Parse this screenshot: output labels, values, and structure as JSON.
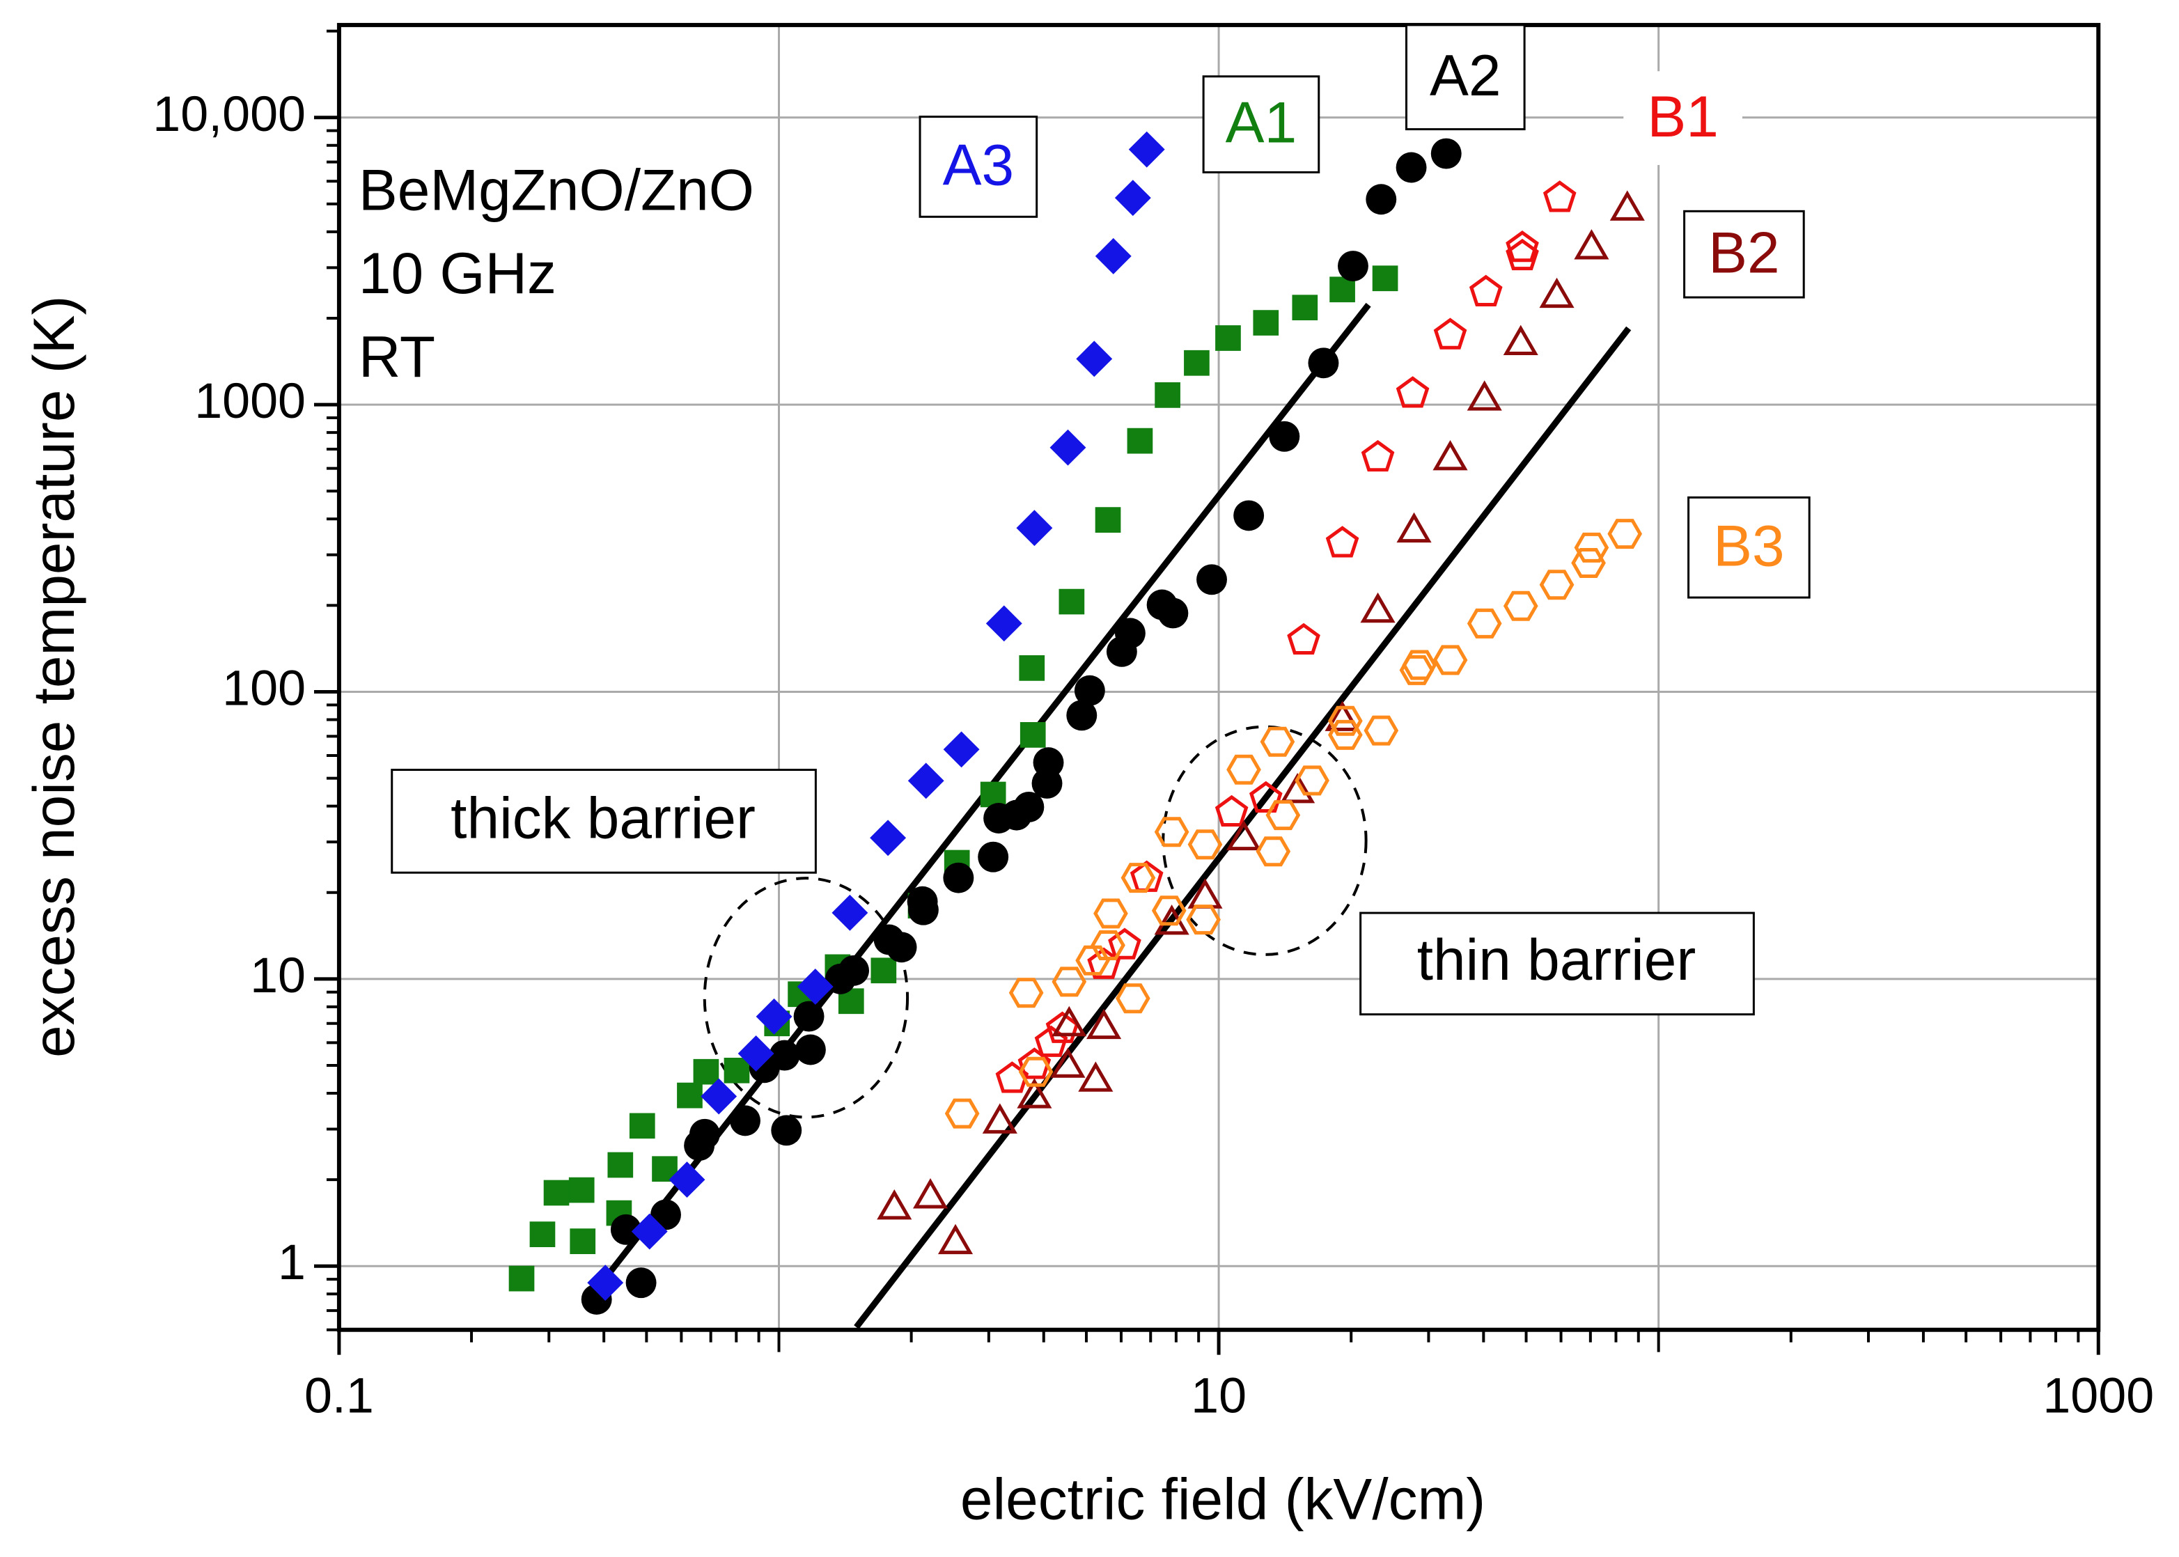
{
  "chart_data": {
    "type": "scatter",
    "xlabel": "electric field (kV/cm)",
    "ylabel": "excess noise temperature (K)",
    "xscale": "log",
    "yscale": "log",
    "grid": true,
    "xlim": [
      0.1,
      1000
    ],
    "ylim": [
      0.6,
      21000
    ],
    "xticks": [
      0.1,
      10,
      1000
    ],
    "yticks": [
      1,
      10,
      100,
      1000,
      {
        "value": 10000,
        "label": "10,000"
      }
    ],
    "annotations": [
      "BeMgZnO/ZnO",
      "10 GHz",
      "RT",
      "thick barrier",
      "thin barrier"
    ],
    "series": [
      {
        "name": "A1",
        "color": "#118011",
        "marker": "square",
        "filled": true,
        "x": [
          0.26,
          0.29,
          0.312,
          0.356,
          0.358,
          0.433,
          0.436,
          0.489,
          0.55,
          0.627,
          0.683,
          0.802,
          0.99,
          1.12,
          1.36,
          1.46,
          1.73,
          2.1,
          2.54,
          3.07,
          3.78,
          3.76,
          4.63,
          5.6,
          6.62,
          7.65,
          8.91,
          10.5,
          12.8,
          15.7,
          19.1,
          23.9
        ],
        "values": [
          0.905,
          1.29,
          1.8,
          1.84,
          1.22,
          1.53,
          2.25,
          3.08,
          2.18,
          3.93,
          4.75,
          4.8,
          7.0,
          8.85,
          11.0,
          8.37,
          10.7,
          18.0,
          25.4,
          43.9,
          70.8,
          121,
          206,
          397,
          748,
          1080,
          1397,
          1706,
          1928,
          2179,
          2518,
          2754
        ]
      },
      {
        "name": "A2",
        "color": "#000000",
        "marker": "circle",
        "filled": true,
        "x": [
          0.385,
          0.449,
          0.486,
          0.553,
          0.659,
          0.678,
          0.838,
          0.927,
          1.03,
          1.18,
          1.17,
          1.38,
          1.48,
          1.78,
          1.9,
          2.13,
          2.12,
          2.56,
          3.07,
          3.16,
          3.47,
          3.7,
          4.07,
          4.1,
          4.88,
          5.09,
          6.02,
          6.29,
          7.43,
          7.87,
          9.64,
          11.7,
          14.1,
          17.3,
          20.2,
          23.4,
          27.4,
          32.9,
          1.04
        ],
        "values": [
          0.766,
          1.34,
          0.875,
          1.51,
          2.63,
          2.88,
          3.21,
          4.91,
          5.42,
          5.67,
          7.41,
          10,
          10.7,
          13.7,
          12.9,
          17.4,
          18.6,
          22.5,
          26.6,
          36.3,
          37.2,
          39.7,
          48.0,
          56.7,
          82.8,
          101,
          138,
          160,
          201,
          188,
          246,
          411,
          775,
          1397,
          3040,
          5190,
          6700,
          7490,
          2.97
        ]
      },
      {
        "name": "A3",
        "color": "#1414e6",
        "marker": "diamond",
        "filled": true,
        "x": [
          0.403,
          0.508,
          0.618,
          0.73,
          0.887,
          0.975,
          1.21,
          1.45,
          1.77,
          2.16,
          2.6,
          3.25,
          3.81,
          4.54,
          5.21,
          5.76,
          6.38,
          6.86
        ],
        "values": [
          0.875,
          1.32,
          2.0,
          3.9,
          5.5,
          7.4,
          9.4,
          17,
          31,
          49,
          63,
          173,
          372,
          709,
          1444,
          3290,
          5250,
          7740
        ]
      },
      {
        "name": "B1",
        "color": "#ee1111",
        "marker": "pentagon",
        "filled": false,
        "x": [
          3.39,
          3.81,
          4.16,
          4.41,
          5.48,
          6.11,
          6.86,
          10.7,
          12.8,
          15.6,
          19.1,
          23.0,
          27.6,
          33.6,
          40.5,
          49.0,
          49.0,
          59.6
        ],
        "values": [
          4.49,
          5.02,
          5.99,
          6.7,
          11.2,
          13.1,
          22.5,
          38.0,
          42.5,
          151,
          329,
          655,
          1093,
          1745,
          2463,
          3290,
          3515,
          5250
        ]
      },
      {
        "name": "B2",
        "color": "#8b0a0a",
        "marker": "triangle",
        "filled": false,
        "x": [
          1.83,
          2.21,
          2.52,
          3.18,
          3.81,
          4.57,
          4.54,
          5.25,
          5.48,
          7.82,
          9.31,
          11.4,
          15.1,
          19.1,
          23.0,
          27.8,
          33.6,
          40.2,
          48.6,
          58.7,
          70.4,
          84.9
        ],
        "values": [
          1.61,
          1.76,
          1.22,
          3.21,
          3.93,
          7.0,
          5.02,
          4.49,
          6.85,
          15.8,
          19.5,
          31.1,
          45.4,
          80.9,
          193,
          367,
          655,
          1057,
          1649,
          2409,
          3555,
          4850
        ]
      },
      {
        "name": "B3",
        "color": "#ff8a1c",
        "marker": "hexagon",
        "filled": false,
        "x": [
          2.61,
          3.65,
          3.84,
          4.57,
          5.17,
          5.6,
          5.68,
          6.38,
          6.56,
          7.82,
          7.71,
          9.23,
          9.31,
          11.4,
          13.6,
          14.0,
          13.3,
          16.3,
          19.4,
          19.4,
          23.4,
          28.2,
          28.6,
          33.6,
          40.2,
          48.6,
          58.7,
          69.3,
          70.4,
          83.8
        ],
        "values": [
          3.4,
          8.95,
          4.75,
          9.78,
          11.6,
          13.1,
          16.9,
          8.56,
          22.5,
          32.5,
          17.3,
          16.1,
          29.4,
          53.6,
          67.0,
          37.2,
          27.8,
          49.1,
          70.8,
          79.2,
          73.3,
          119,
          124,
          129,
          173,
          199,
          236,
          281,
          318,
          355
        ]
      }
    ],
    "fits": [
      {
        "x": [
          0.385,
          21.9
        ],
        "values": [
          0.83,
          2228
        ],
        "color": "#000000"
      },
      {
        "x": [
          1.5,
          85.5
        ],
        "values": [
          0.613,
          1845
        ],
        "color": "#000000"
      }
    ]
  }
}
